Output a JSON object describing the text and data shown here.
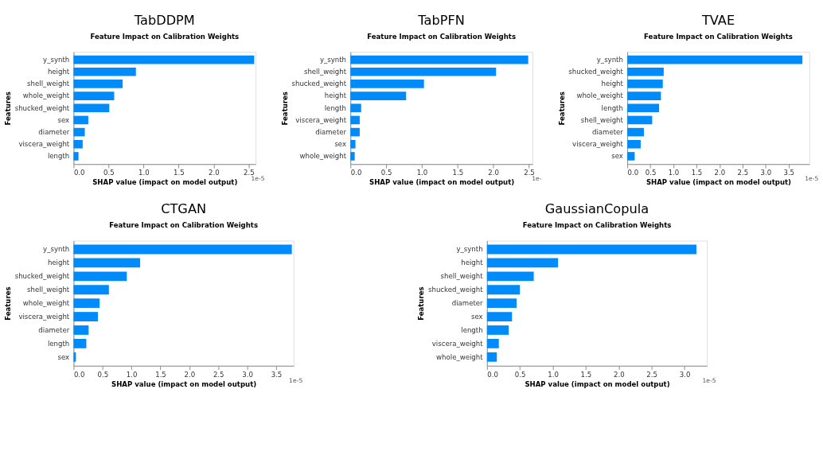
{
  "chart_data": [
    {
      "type": "bar",
      "orientation": "horizontal",
      "title": "TabDDPM",
      "subtitle": "Feature Impact on Calibration Weights",
      "xlabel": "SHAP value (impact on model output)",
      "ylabel": "Features",
      "color": "#008bfb",
      "categories": [
        "y_synth",
        "height",
        "shell_weight",
        "whole_weight",
        "shucked_weight",
        "sex",
        "diameter",
        "viscera_weight",
        "length"
      ],
      "values": [
        2.58,
        0.89,
        0.7,
        0.58,
        0.51,
        0.21,
        0.16,
        0.13,
        0.07
      ],
      "xlim": [
        0,
        2.6
      ],
      "xticks": [
        {
          "value": 0,
          "label": "0.0"
        },
        {
          "value": 0.5,
          "label": "0.5"
        },
        {
          "value": 1,
          "label": "1.0"
        },
        {
          "value": 1.5,
          "label": "1.5"
        },
        {
          "value": 2,
          "label": "2.0"
        },
        {
          "value": 2.5,
          "label": "2.5"
        }
      ],
      "annotations": [
        "1e-5"
      ]
    },
    {
      "type": "bar",
      "orientation": "horizontal",
      "title": "TabPFN",
      "subtitle": "Feature Impact on Calibration Weights",
      "xlabel": "SHAP value (impact on model output)",
      "ylabel": "Features",
      "color": "#008bfb",
      "categories": [
        "y_synth",
        "shell_weight",
        "shucked_weight",
        "height",
        "length",
        "viscera_weight",
        "diameter",
        "sex",
        "whole_weight"
      ],
      "values": [
        2.49,
        2.04,
        1.03,
        0.78,
        0.15,
        0.13,
        0.13,
        0.07,
        0.06
      ],
      "xlim": [
        0,
        2.55
      ],
      "xticks": [
        {
          "value": 0,
          "label": "0.0"
        },
        {
          "value": 0.5,
          "label": "0.5"
        },
        {
          "value": 1,
          "label": "1.0"
        },
        {
          "value": 1.5,
          "label": "1.5"
        },
        {
          "value": 2,
          "label": "2.0"
        },
        {
          "value": 2.5,
          "label": "2.5"
        }
      ],
      "annotations": [
        "1e-"
      ]
    },
    {
      "type": "bar",
      "orientation": "horizontal",
      "title": "TVAE",
      "subtitle": "Feature Impact on Calibration Weights",
      "xlabel": "SHAP value (impact on model output)",
      "ylabel": "Features",
      "color": "#008bfb",
      "categories": [
        "y_synth",
        "shucked_weight",
        "height",
        "whole_weight",
        "length",
        "shell_weight",
        "diameter",
        "viscera_weight",
        "sex"
      ],
      "values": [
        3.8,
        0.79,
        0.77,
        0.73,
        0.69,
        0.54,
        0.36,
        0.29,
        0.16
      ],
      "xlim": [
        0,
        3.95
      ],
      "xticks": [
        {
          "value": 0,
          "label": "0.0"
        },
        {
          "value": 0.5,
          "label": "0.5"
        },
        {
          "value": 1,
          "label": "1.0"
        },
        {
          "value": 1.5,
          "label": "1.5"
        },
        {
          "value": 2,
          "label": "2.0"
        },
        {
          "value": 2.5,
          "label": "2.5"
        },
        {
          "value": 3,
          "label": "3.0"
        },
        {
          "value": 3.5,
          "label": "3.5"
        }
      ],
      "annotations": [
        "1e-5"
      ]
    },
    {
      "type": "bar",
      "orientation": "horizontal",
      "title": "CTGAN",
      "subtitle": "Feature Impact on Calibration Weights",
      "xlabel": "SHAP value (impact on model output)",
      "ylabel": "Features",
      "color": "#008bfb",
      "categories": [
        "y_synth",
        "height",
        "shucked_weight",
        "shell_weight",
        "whole_weight",
        "viscera_weight",
        "diameter",
        "length",
        "sex"
      ],
      "values": [
        3.77,
        1.15,
        0.92,
        0.61,
        0.45,
        0.42,
        0.26,
        0.22,
        0.04
      ],
      "xlim": [
        0,
        3.8
      ],
      "xticks": [
        {
          "value": 0,
          "label": "0.0"
        },
        {
          "value": 0.5,
          "label": "0.5"
        },
        {
          "value": 1,
          "label": "1.0"
        },
        {
          "value": 1.5,
          "label": "1.5"
        },
        {
          "value": 2,
          "label": "2.0"
        },
        {
          "value": 2.5,
          "label": "2.5"
        },
        {
          "value": 3,
          "label": "3.0"
        },
        {
          "value": 3.5,
          "label": "3.5"
        }
      ],
      "annotations": [
        "1e-5"
      ]
    },
    {
      "type": "bar",
      "orientation": "horizontal",
      "title": "GaussianCopula",
      "subtitle": "Feature Impact on Calibration Weights",
      "xlabel": "SHAP value (impact on model output)",
      "ylabel": "Features",
      "color": "#008bfb",
      "categories": [
        "y_synth",
        "height",
        "shell_weight",
        "shucked_weight",
        "diameter",
        "sex",
        "length",
        "viscera_weight",
        "whole_weight"
      ],
      "values": [
        3.18,
        1.08,
        0.71,
        0.5,
        0.45,
        0.38,
        0.33,
        0.18,
        0.15
      ],
      "xlim": [
        0,
        3.34
      ],
      "xticks": [
        {
          "value": 0,
          "label": "0.0"
        },
        {
          "value": 0.5,
          "label": "0.5"
        },
        {
          "value": 1,
          "label": "1.0"
        },
        {
          "value": 1.5,
          "label": "1.5"
        },
        {
          "value": 2,
          "label": "2.0"
        },
        {
          "value": 2.5,
          "label": "2.5"
        },
        {
          "value": 3,
          "label": "3.0"
        }
      ],
      "annotations": [
        "1e-5"
      ]
    }
  ]
}
